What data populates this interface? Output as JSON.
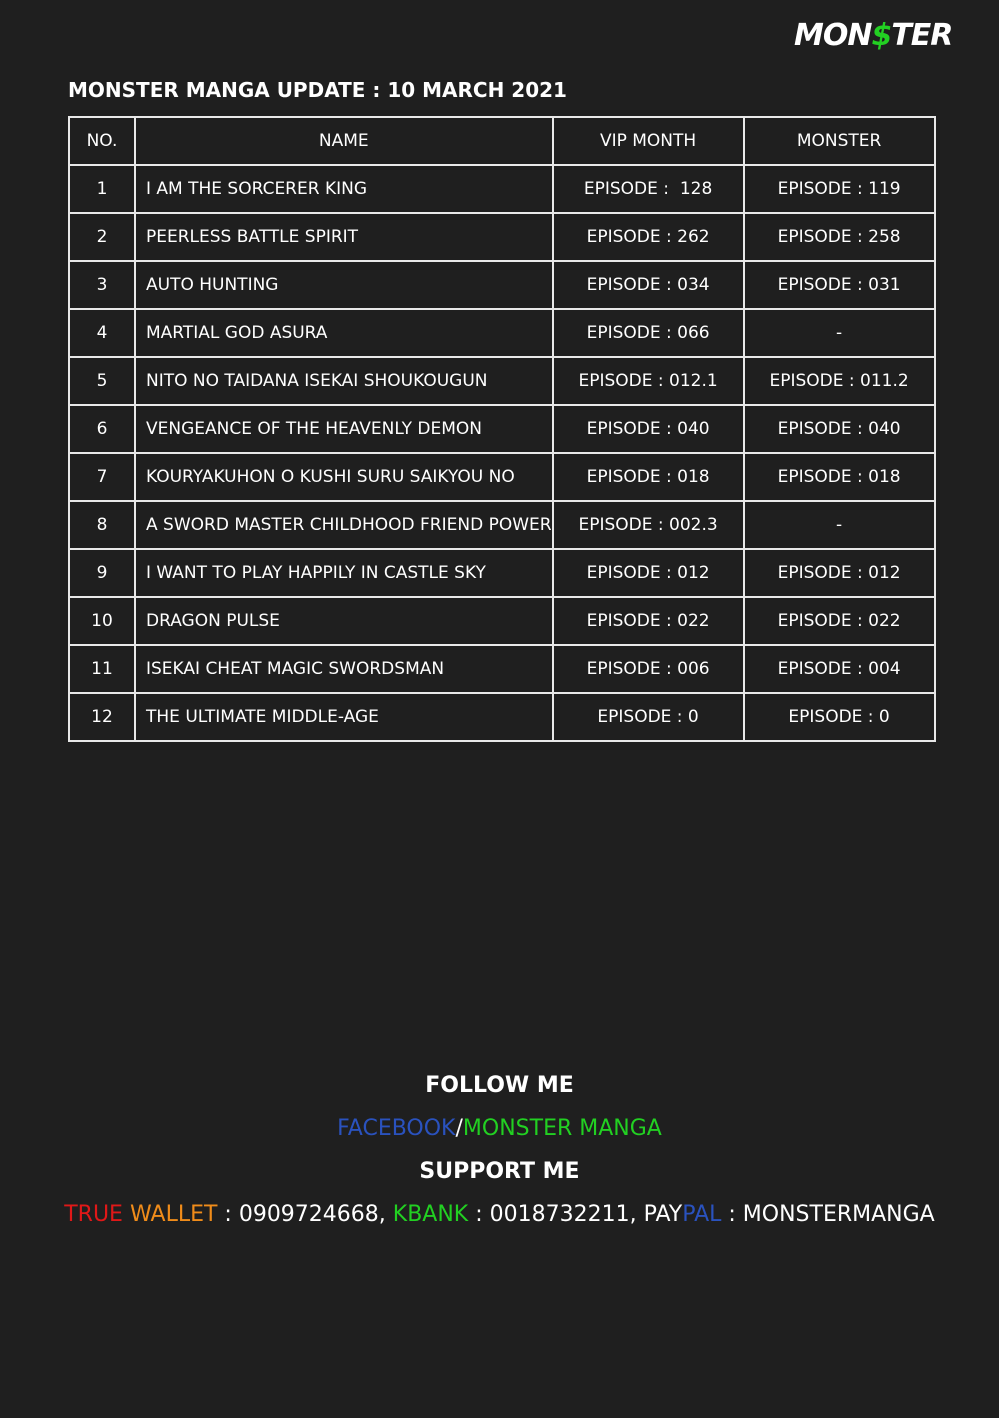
{
  "logo": [
    "MON",
    "$",
    "TER"
  ],
  "title": "MONSTER MANGA UPDATE : 10 MARCH 2021",
  "table": {
    "header": [
      "NO.",
      "NAME",
      "VIP MONTH",
      "MONSTER"
    ],
    "rows": [
      [
        "1",
        "I AM THE SORCERER KING",
        "EPISODE :  128",
        "EPISODE : 119"
      ],
      [
        "2",
        "PEERLESS BATTLE SPIRIT",
        "EPISODE : 262",
        "EPISODE : 258"
      ],
      [
        "3",
        "AUTO HUNTING",
        "EPISODE : 034",
        "EPISODE : 031"
      ],
      [
        "4",
        "MARTIAL GOD ASURA",
        "EPISODE : 066",
        "-"
      ],
      [
        "5",
        "NITO NO TAIDANA ISEKAI SHOUKOUGUN",
        "EPISODE : 012.1",
        "EPISODE : 011.2"
      ],
      [
        "6",
        "VENGEANCE OF THE HEAVENLY DEMON",
        "EPISODE : 040",
        "EPISODE : 040"
      ],
      [
        "7",
        "KOURYAKUHON O KUSHI SURU SAIKYOU NO",
        "EPISODE : 018",
        "EPISODE : 018"
      ],
      [
        "8",
        "A SWORD MASTER CHILDHOOD FRIEND POWER",
        "EPISODE : 002.3",
        "-"
      ],
      [
        "9",
        "I WANT TO PLAY HAPPILY IN CASTLE SKY",
        "EPISODE : 012",
        "EPISODE : 012"
      ],
      [
        "10",
        "DRAGON PULSE",
        "EPISODE : 022",
        "EPISODE : 022"
      ],
      [
        "11",
        "ISEKAI CHEAT MAGIC SWORDSMAN",
        "EPISODE : 006",
        "EPISODE : 004"
      ],
      [
        "12",
        "THE ULTIMATE MIDDLE-AGE",
        "EPISODE : 0",
        "EPISODE : 0"
      ]
    ]
  },
  "footer": {
    "follow_title": "FOLLOW ME",
    "follow": [
      {
        "text": "FACEBOOK",
        "color": "#2a52be"
      },
      {
        "text": "/",
        "color": "#ffffff"
      },
      {
        "text": "MONSTER MANGA",
        "color": "#22d022"
      }
    ],
    "support_title": "SUPPORT ME",
    "support": [
      {
        "text": "TRUE ",
        "color": "#e01818"
      },
      {
        "text": "WALLET",
        "color": "#f08c1a"
      },
      {
        "text": " : 0909724668, ",
        "color": "#ffffff"
      },
      {
        "text": "KBANK",
        "color": "#22d022"
      },
      {
        "text": " : 0018732211, PAY",
        "color": "#ffffff"
      },
      {
        "text": "PAL",
        "color": "#2a52be"
      },
      {
        "text": " : MONSTERMANGA",
        "color": "#ffffff"
      }
    ]
  }
}
